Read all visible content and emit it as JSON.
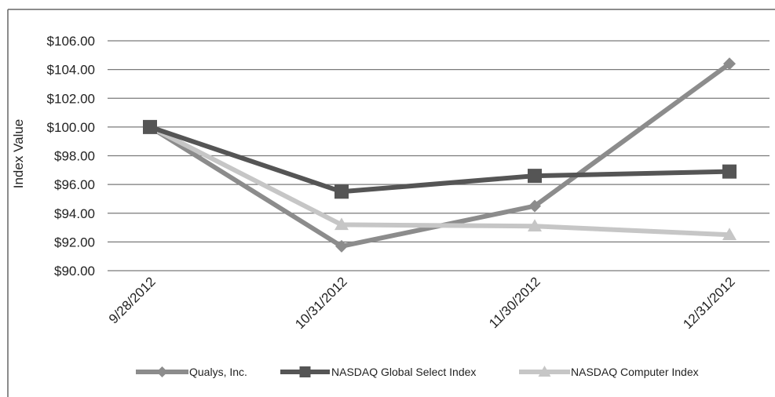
{
  "chart_data": {
    "type": "line",
    "title": "",
    "xlabel": "",
    "ylabel": "Index Value",
    "categories": [
      "9/28/2012",
      "10/31/2012",
      "11/30/2012",
      "12/31/2012"
    ],
    "ylim": [
      90,
      106
    ],
    "yticks": [
      90,
      92,
      94,
      96,
      98,
      100,
      102,
      104,
      106
    ],
    "ytick_labels": [
      "$90.00",
      "$92.00",
      "$94.00",
      "$96.00",
      "$98.00",
      "$100.00",
      "$102.00",
      "$104.00",
      "$106.00"
    ],
    "grid": "horizontal",
    "legend_position": "bottom",
    "series": [
      {
        "name": "Qualys, Inc.",
        "values": [
          100.0,
          91.7,
          94.5,
          104.4
        ],
        "color": "#8c8c8c",
        "marker": "diamond"
      },
      {
        "name": "NASDAQ Global Select Index",
        "values": [
          100.0,
          95.5,
          96.6,
          96.9
        ],
        "color": "#555555",
        "marker": "square"
      },
      {
        "name": "NASDAQ Computer Index",
        "values": [
          100.0,
          93.2,
          93.1,
          92.5
        ],
        "color": "#c6c6c6",
        "marker": "triangle"
      }
    ]
  }
}
